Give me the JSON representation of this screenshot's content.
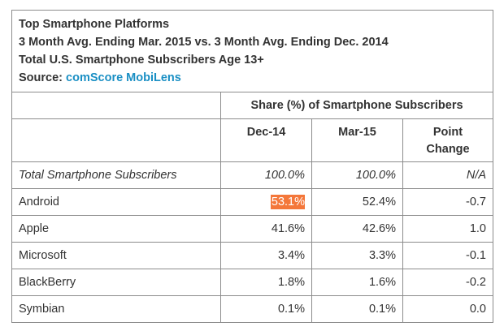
{
  "header": {
    "title": "Top Smartphone Platforms",
    "subtitle": "3 Month Avg. Ending Mar. 2015 vs. 3 Month Avg. Ending Dec. 2014",
    "population": "Total U.S. Smartphone Subscribers Age 13+",
    "source_label": "Source:",
    "source_name": "comScore MobiLens"
  },
  "chart_data": {
    "type": "table",
    "title": "Top Smartphone Platforms",
    "group_header": "Share (%) of Smartphone Subscribers",
    "columns": [
      "Dec-14",
      "Mar-15",
      "Point Change"
    ],
    "rows": [
      {
        "label": "Total Smartphone Subscribers",
        "dec14": "100.0%",
        "mar15": "100.0%",
        "change": "N/A"
      },
      {
        "label": "Android",
        "dec14": "53.1%",
        "mar15": "52.4%",
        "change": "-0.7"
      },
      {
        "label": "Apple",
        "dec14": "41.6%",
        "mar15": "42.6%",
        "change": "1.0"
      },
      {
        "label": "Microsoft",
        "dec14": "3.4%",
        "mar15": "3.3%",
        "change": "-0.1"
      },
      {
        "label": "BlackBerry",
        "dec14": "1.8%",
        "mar15": "1.6%",
        "change": "-0.2"
      },
      {
        "label": "Symbian",
        "dec14": "0.1%",
        "mar15": "0.1%",
        "change": "0.0"
      }
    ],
    "colors": {
      "highlight": "#f4773a",
      "source_link": "#1a8fc4",
      "border": "#8c8c8c"
    }
  }
}
